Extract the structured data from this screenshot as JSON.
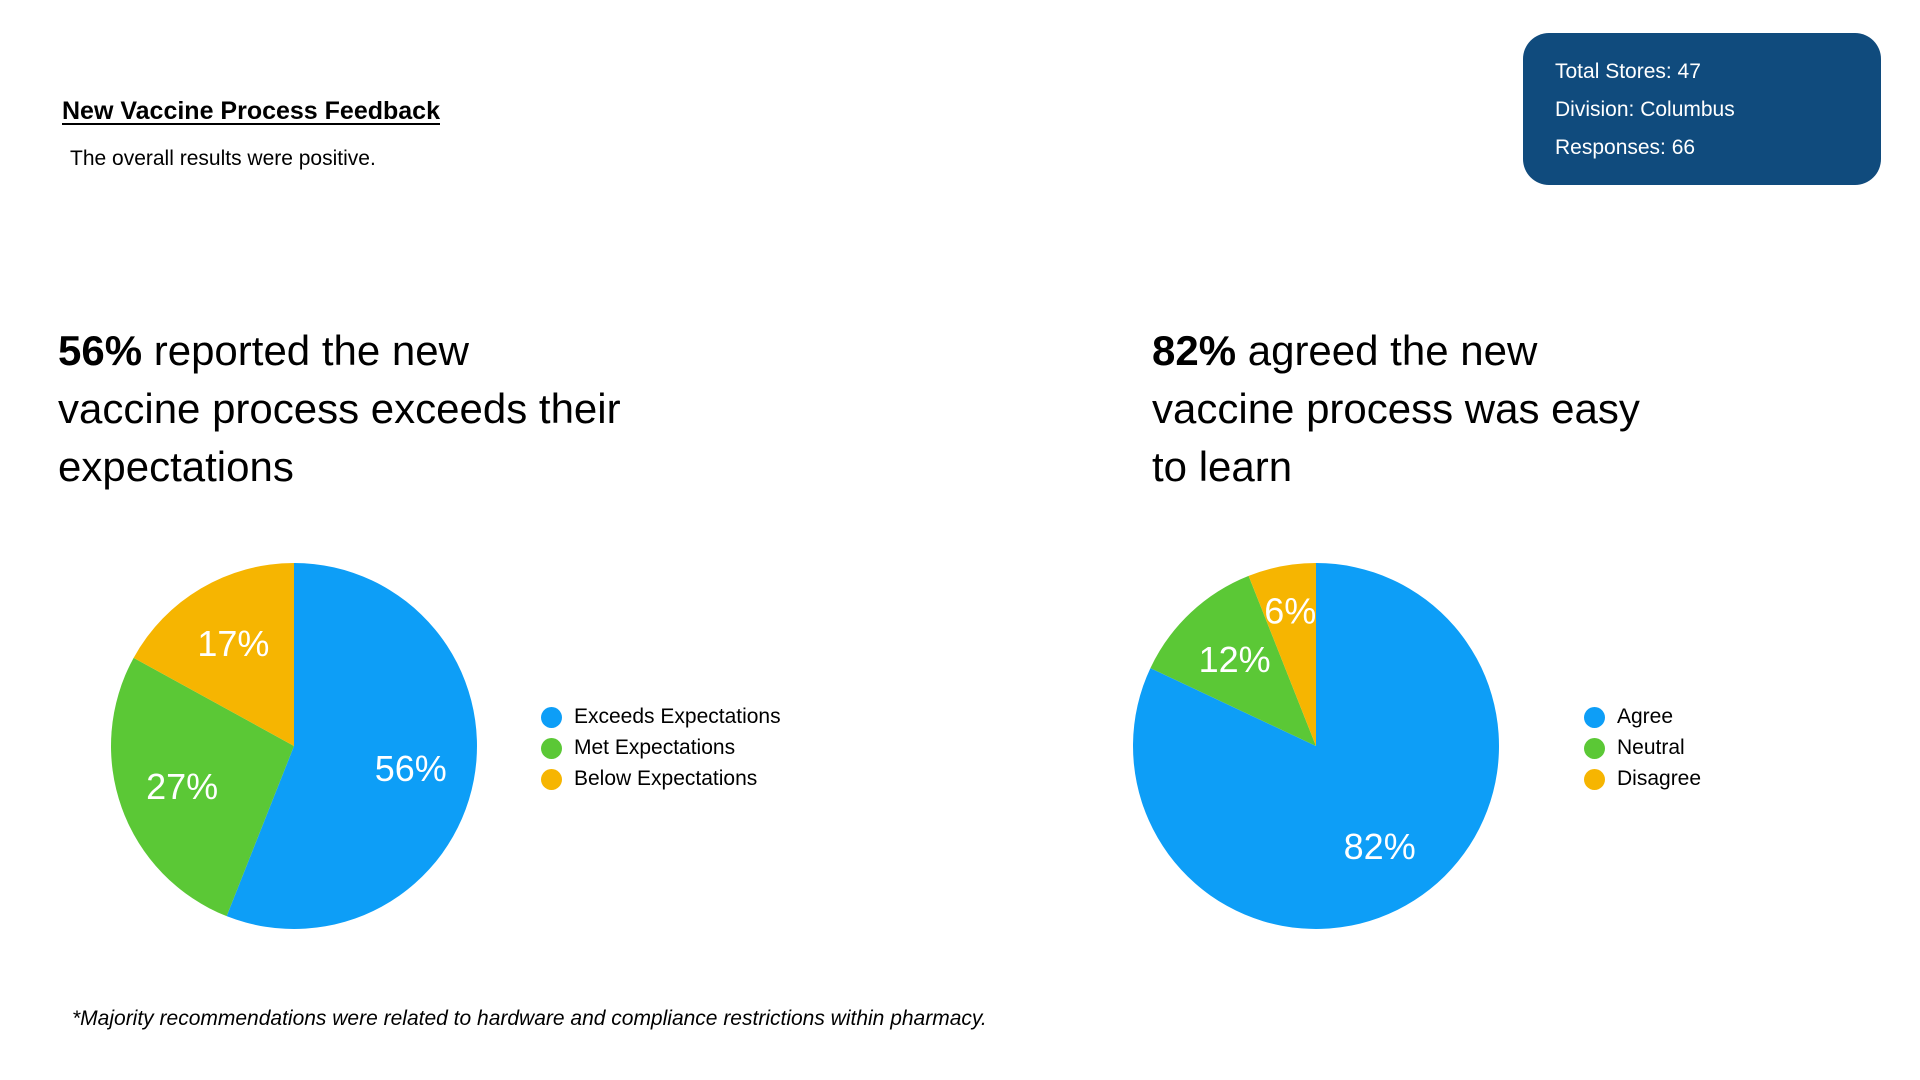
{
  "header": {
    "title": "New Vaccine Process Feedback",
    "subtitle": "The overall results were positive."
  },
  "info_box": {
    "lines": [
      "Total Stores: 47",
      "Division: Columbus",
      "Responses: 66"
    ]
  },
  "sections": [
    {
      "heading": {
        "highlight": "56%",
        "rest": " reported the new",
        "line2": "vaccine process exceeds their",
        "line3": "expectations"
      }
    },
    {
      "heading": {
        "highlight": "82%",
        "rest": " agreed the new",
        "line2": "vaccine process was easy",
        "line3": "to learn"
      }
    }
  ],
  "chart_data": [
    {
      "type": "pie",
      "title": "56% reported the new vaccine process exceeds their expectations",
      "start_angle_deg": 0,
      "direction": "clockwise",
      "legend_position": "right",
      "slices": [
        {
          "name": "Exceeds Expectations",
          "value": 56,
          "label": "56%",
          "color": "#0D9EF7",
          "label_r": 0.65
        },
        {
          "name": "Met Expectations",
          "value": 27,
          "label": "27%",
          "color": "#5BC836",
          "label_r": 0.65
        },
        {
          "name": "Below Expectations",
          "value": 17,
          "label": "17%",
          "color": "#F6B501",
          "label_r": 0.65
        }
      ]
    },
    {
      "type": "pie",
      "title": "82% agreed the new vaccine process was easy to learn",
      "start_angle_deg": 0,
      "direction": "clockwise",
      "legend_position": "right",
      "slices": [
        {
          "name": "Agree",
          "value": 82,
          "label": "82%",
          "color": "#0D9EF7",
          "label_r": 0.65
        },
        {
          "name": "Neutral",
          "value": 12,
          "label": "12%",
          "color": "#5BC836",
          "label_r": 0.65
        },
        {
          "name": "Disagree",
          "value": 6,
          "label": "6%",
          "color": "#F6B501",
          "label_r": 0.75
        }
      ]
    }
  ],
  "footnote": "*Majority recommendations were related to hardware and compliance restrictions within pharmacy.",
  "colors": {
    "info_box_bg": "#104B7D",
    "heading_text": "#000000",
    "pie_label_text": "#FFFFFF"
  }
}
